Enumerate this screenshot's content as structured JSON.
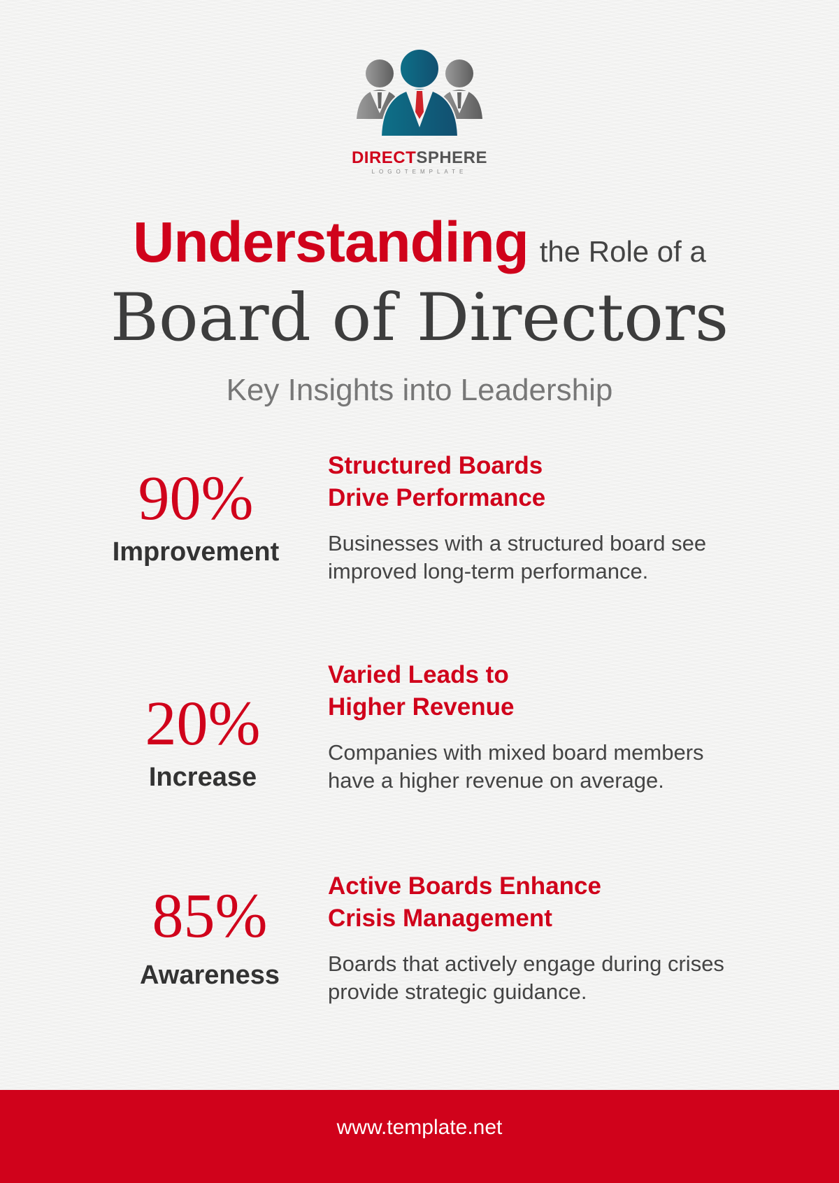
{
  "brand": {
    "name_red": "DIRECT",
    "name_grey": "SPHERE",
    "tagline": "LOGOTEMPLATE",
    "colors": {
      "red": "#d0021b",
      "teal": "#0d6680",
      "grey": "#7a7a7a"
    }
  },
  "title": {
    "highlight": "Understanding",
    "rest": "the Role of a",
    "main": "Board of Directors",
    "subtitle": "Key Insights into Leadership"
  },
  "stats": [
    {
      "value": "90%",
      "label": "Improvement",
      "heading_1": "Structured Boards",
      "heading_2": "Drive Performance",
      "text_1": "Businesses with a structured board see",
      "text_2": "improved long-term performance."
    },
    {
      "value": "20%",
      "label": "Increase",
      "heading_1": "Varied Leads to",
      "heading_2": "Higher Revenue",
      "text_1": "Companies with mixed board members",
      "text_2": "have a higher revenue on average."
    },
    {
      "value": "85%",
      "label": "Awareness",
      "heading_1": "Active Boards Enhance",
      "heading_2": "Crisis Management",
      "text_1": "Boards that actively engage during crises",
      "text_2": "provide strategic guidance."
    }
  ],
  "footer": {
    "url": "www.template.net"
  }
}
